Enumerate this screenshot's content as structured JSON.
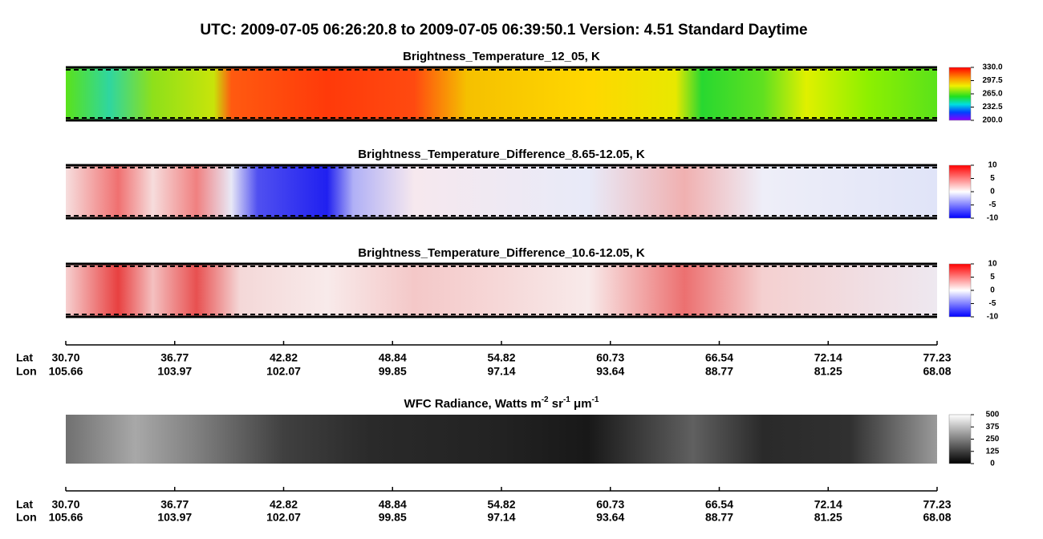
{
  "title": "UTC:  2009-07-05   06:26:20.8  to  2009-07-05   06:39:50.1    Version: 4.51  Standard Daytime",
  "panels": [
    {
      "title": [
        {
          "text": "Brightness_Temperature_12_05, K"
        }
      ],
      "colorbar": {
        "lim": [
          200,
          330
        ],
        "ticks": [
          {
            "value": 330,
            "label": "330.0"
          },
          {
            "value": 297.5,
            "label": "297.5"
          },
          {
            "value": 265,
            "label": "265.0"
          },
          {
            "value": 232.5,
            "label": "232.5"
          },
          {
            "value": 200,
            "label": "200.0"
          }
        ]
      }
    },
    {
      "title": [
        {
          "text": "Brightness_Temperature_Difference_8.65-12.05, K"
        }
      ],
      "colorbar": {
        "lim": [
          -10,
          10
        ],
        "ticks": [
          10,
          5,
          0,
          -5,
          -10
        ]
      }
    },
    {
      "title": [
        {
          "text": "Brightness_Temperature_Difference_10.6-12.05, K"
        }
      ],
      "colorbar": {
        "lim": [
          -10,
          10
        ],
        "ticks": [
          10,
          5,
          0,
          -5,
          -10
        ]
      }
    },
    {
      "title": [
        {
          "text": "WFC Radiance, Watts m"
        },
        {
          "text": "-2",
          "sup": true
        },
        {
          "text": " sr"
        },
        {
          "text": "-1",
          "sup": true
        },
        {
          "text": " μm"
        },
        {
          "text": "-1",
          "sup": true
        }
      ],
      "colorbar": {
        "lim": [
          0,
          500
        ],
        "ticks": [
          500,
          375,
          250,
          125,
          0
        ]
      }
    }
  ],
  "axis": {
    "row_labels": [
      "Lat",
      "Lon"
    ],
    "lat": [
      "30.70",
      "36.77",
      "42.82",
      "48.84",
      "54.82",
      "60.73",
      "66.54",
      "72.14",
      "77.23"
    ],
    "lon": [
      "105.66",
      "103.97",
      "102.07",
      "99.85",
      "97.14",
      "93.64",
      "88.77",
      "81.25",
      "68.08"
    ]
  }
}
